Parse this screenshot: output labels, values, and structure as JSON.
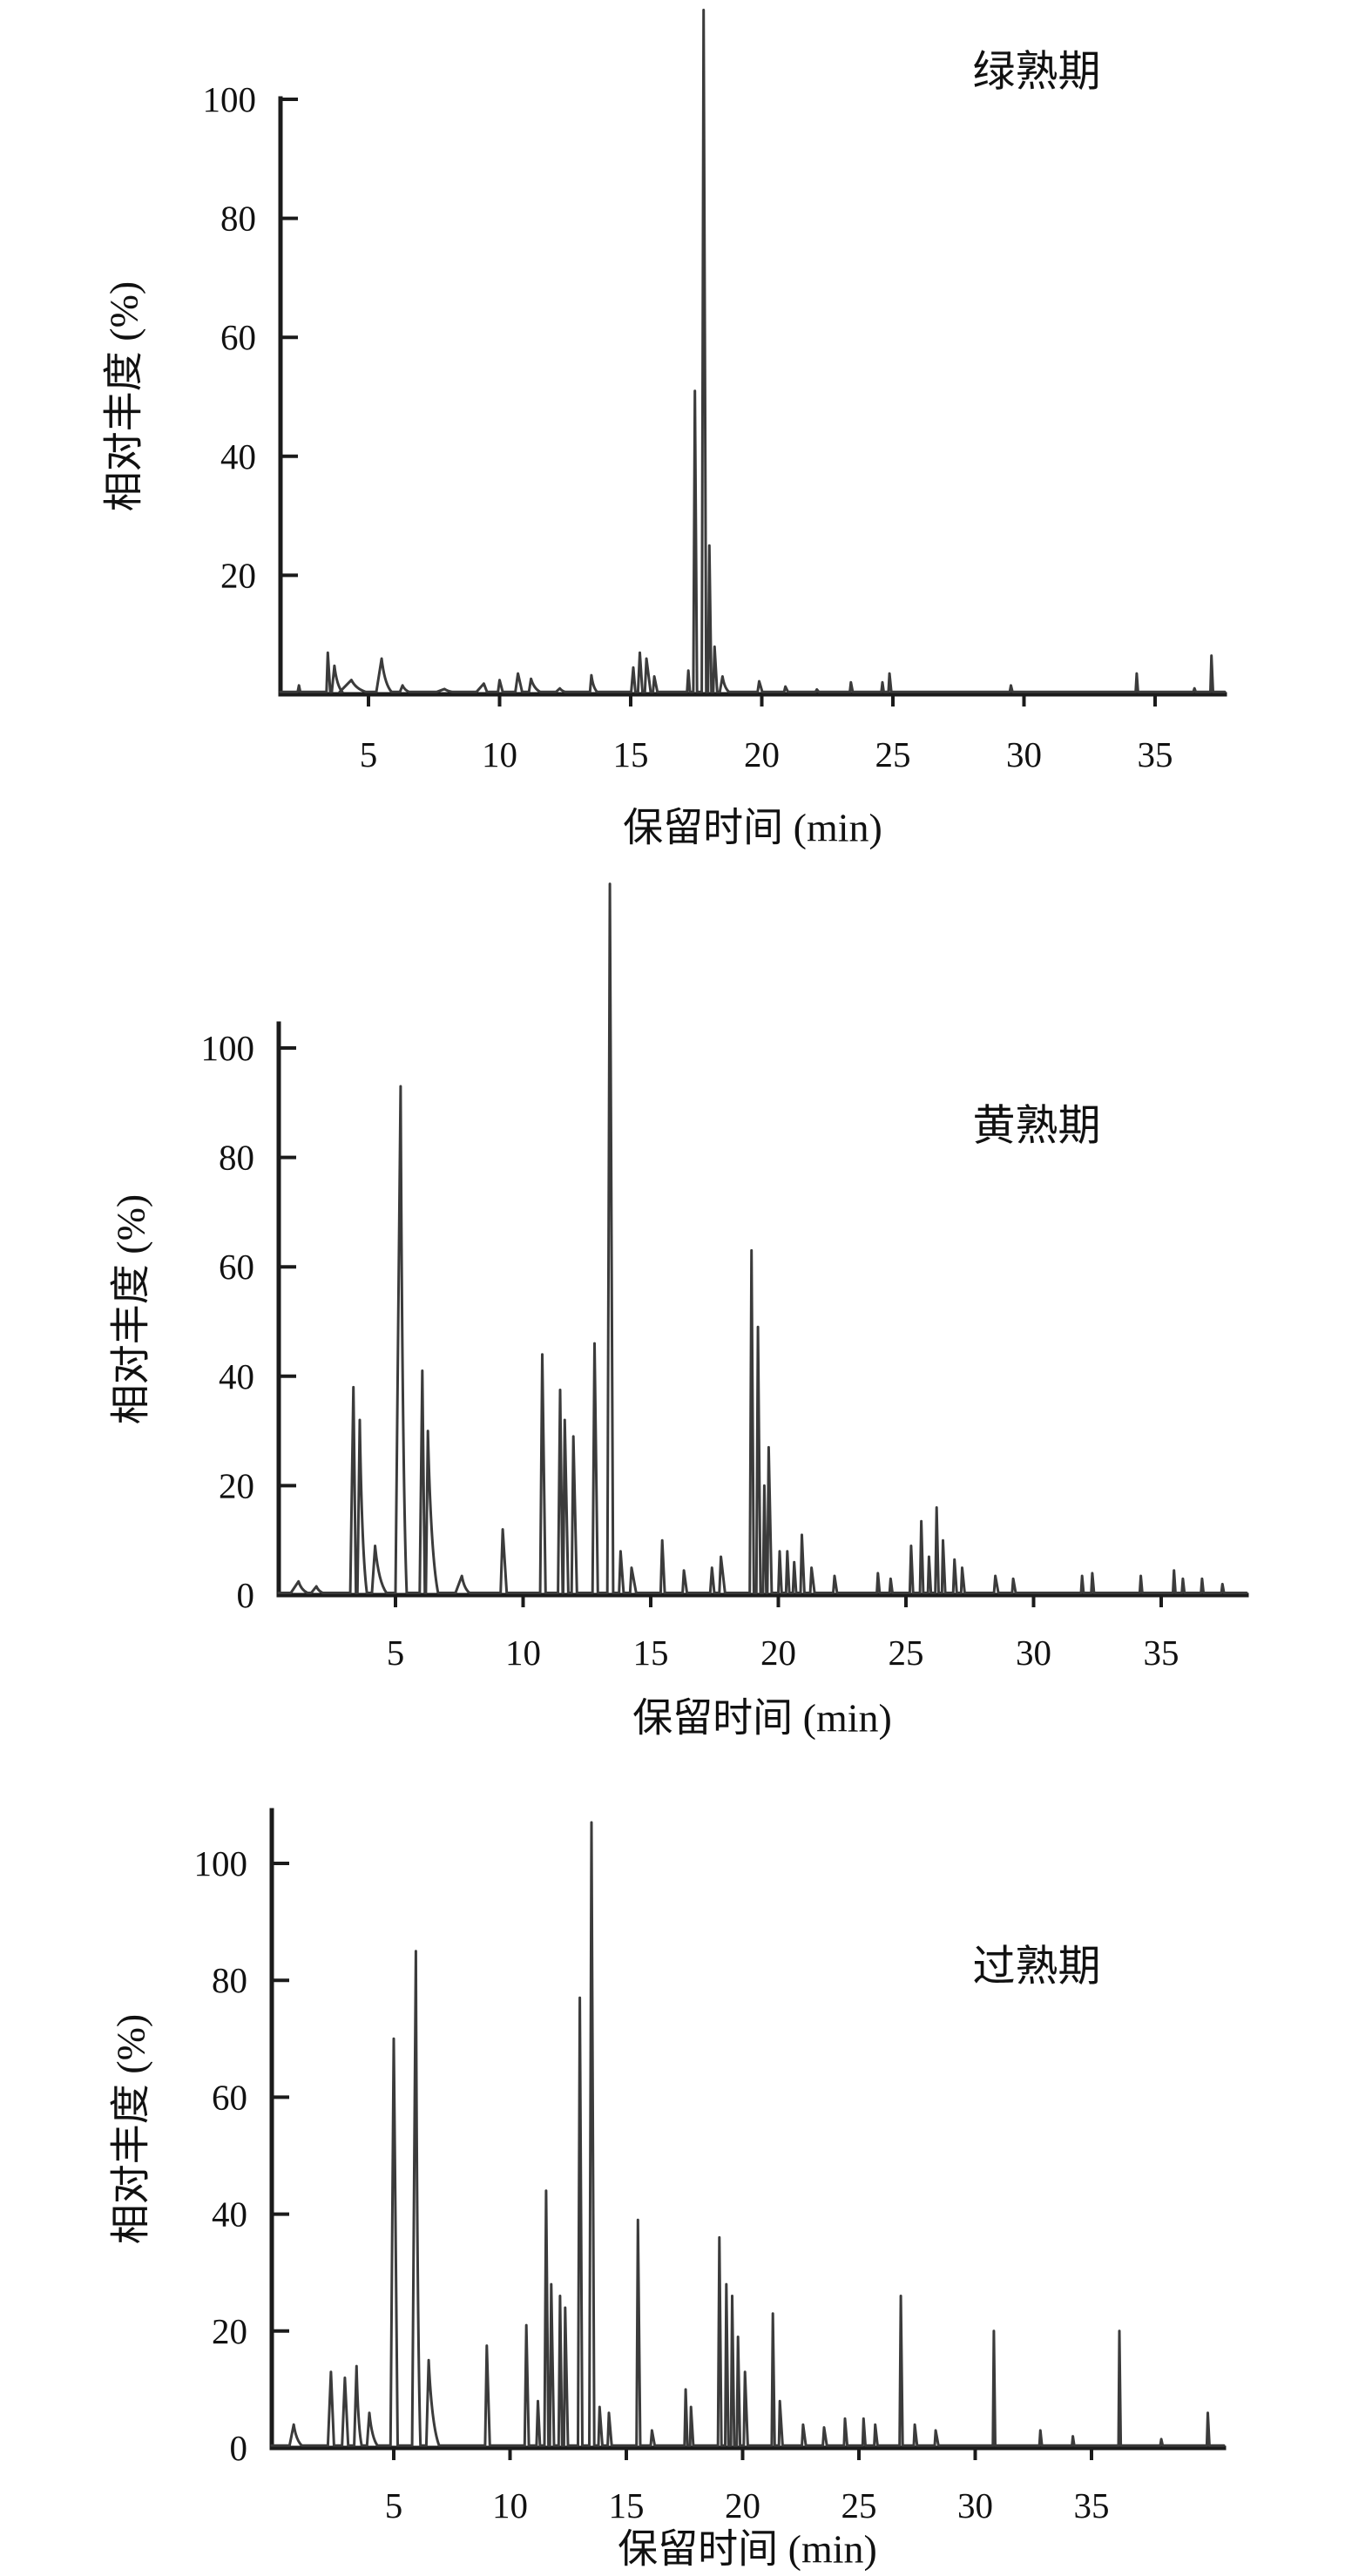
{
  "figure": {
    "background_color": "#ffffff",
    "trace_color": "#3b3b3b",
    "axis_color": "#1b1b1b",
    "text_color": "#111111"
  },
  "chart_data": {
    "type": "line",
    "subtype": "chromatogram",
    "xlabel": "保留时间 (min)",
    "ylabel": "相对丰度 (%)",
    "x_ticks": [
      5,
      10,
      15,
      20,
      25,
      30,
      35
    ],
    "grid": "off",
    "legend": "none",
    "panels": [
      {
        "title": "绿熟期",
        "y_ticks": [
          20,
          40,
          60,
          80,
          100
        ],
        "ylim": [
          0,
          115
        ],
        "xlim": [
          1.6,
          37.8
        ],
        "main_peak": {
          "time": 17.8,
          "height": 115
        },
        "peaks": [
          [
            2.35,
            1.5,
            0.05,
            0.05
          ],
          [
            3.45,
            7,
            0.05,
            0.09
          ],
          [
            3.7,
            4.8,
            0.1,
            0.3
          ],
          [
            4.35,
            2.4,
            0.45,
            0.55
          ],
          [
            5.5,
            6,
            0.2,
            0.38
          ],
          [
            6.3,
            1.5,
            0.1,
            0.25
          ],
          [
            7.9,
            0.9,
            0.3,
            0.3
          ],
          [
            9.4,
            1.8,
            0.28,
            0.12
          ],
          [
            10.0,
            2.4,
            0.06,
            0.12
          ],
          [
            10.7,
            3.5,
            0.1,
            0.16
          ],
          [
            11.2,
            2.6,
            0.08,
            0.35
          ],
          [
            12.3,
            1,
            0.15,
            0.2
          ],
          [
            13.5,
            3.2,
            0.05,
            0.22
          ],
          [
            15.1,
            4.5,
            0.08,
            0.08
          ],
          [
            15.35,
            7,
            0.07,
            0.1
          ],
          [
            15.6,
            6,
            0.06,
            0.16
          ],
          [
            15.9,
            3,
            0.05,
            0.12
          ],
          [
            17.2,
            4,
            0.05,
            0.06
          ],
          [
            17.45,
            51,
            0.06,
            0.08
          ],
          [
            17.78,
            115,
            0.07,
            0.1
          ],
          [
            18.0,
            25,
            0.05,
            0.08
          ],
          [
            18.2,
            8,
            0.05,
            0.1
          ],
          [
            18.5,
            3,
            0.1,
            0.25
          ],
          [
            19.9,
            2.2,
            0.06,
            0.12
          ],
          [
            20.9,
            1.3,
            0.05,
            0.1
          ],
          [
            22.1,
            0.8,
            0.05,
            0.08
          ],
          [
            23.4,
            2,
            0.04,
            0.07
          ],
          [
            24.6,
            2,
            0.04,
            0.05
          ],
          [
            24.87,
            3.5,
            0.04,
            0.07
          ],
          [
            29.5,
            1.5,
            0.04,
            0.06
          ],
          [
            34.3,
            3.5,
            0.04,
            0.05
          ],
          [
            36.5,
            1,
            0.04,
            0.05
          ],
          [
            37.15,
            6.5,
            0.04,
            0.06
          ]
        ]
      },
      {
        "title": "黄熟期",
        "y_ticks": [
          0,
          20,
          40,
          60,
          80,
          100
        ],
        "ylim": [
          0,
          130
        ],
        "xlim": [
          0.4,
          38.3
        ],
        "main_peak": {
          "time": 13.4,
          "height": 130
        },
        "peaks": [
          [
            1.2,
            2.5,
            0.3,
            0.35
          ],
          [
            1.9,
            1.6,
            0.2,
            0.25
          ],
          [
            3.35,
            38,
            0.12,
            0.1
          ],
          [
            3.6,
            32,
            0.09,
            0.28
          ],
          [
            4.2,
            9,
            0.12,
            0.45
          ],
          [
            5.2,
            93,
            0.2,
            0.24
          ],
          [
            6.05,
            41,
            0.1,
            0.1
          ],
          [
            6.27,
            30,
            0.08,
            0.4
          ],
          [
            7.6,
            3.5,
            0.25,
            0.3
          ],
          [
            9.2,
            12,
            0.08,
            0.16
          ],
          [
            10.75,
            44,
            0.08,
            0.13
          ],
          [
            11.45,
            37.5,
            0.08,
            0.1
          ],
          [
            11.63,
            32,
            0.06,
            0.14
          ],
          [
            11.97,
            29,
            0.07,
            0.14
          ],
          [
            12.8,
            46,
            0.08,
            0.13
          ],
          [
            13.4,
            130,
            0.1,
            0.13
          ],
          [
            13.82,
            8,
            0.06,
            0.12
          ],
          [
            14.25,
            5,
            0.06,
            0.18
          ],
          [
            15.45,
            10,
            0.06,
            0.1
          ],
          [
            16.3,
            4.5,
            0.05,
            0.12
          ],
          [
            17.4,
            5,
            0.07,
            0.09
          ],
          [
            17.75,
            7,
            0.06,
            0.16
          ],
          [
            18.95,
            63,
            0.07,
            0.09
          ],
          [
            19.2,
            49,
            0.06,
            0.1
          ],
          [
            19.45,
            20,
            0.05,
            0.08
          ],
          [
            19.62,
            27,
            0.05,
            0.12
          ],
          [
            20.05,
            8,
            0.05,
            0.08
          ],
          [
            20.35,
            8,
            0.05,
            0.08
          ],
          [
            20.62,
            6,
            0.05,
            0.08
          ],
          [
            20.92,
            11,
            0.05,
            0.1
          ],
          [
            21.3,
            5,
            0.05,
            0.12
          ],
          [
            22.2,
            3.5,
            0.05,
            0.1
          ],
          [
            23.9,
            4,
            0.04,
            0.07
          ],
          [
            24.4,
            3,
            0.04,
            0.07
          ],
          [
            25.2,
            9,
            0.05,
            0.08
          ],
          [
            25.6,
            13.5,
            0.05,
            0.08
          ],
          [
            25.9,
            7,
            0.04,
            0.08
          ],
          [
            26.2,
            16,
            0.05,
            0.08
          ],
          [
            26.45,
            10,
            0.04,
            0.09
          ],
          [
            26.9,
            6.5,
            0.05,
            0.09
          ],
          [
            27.2,
            5,
            0.04,
            0.1
          ],
          [
            28.5,
            3.5,
            0.05,
            0.12
          ],
          [
            29.2,
            3,
            0.04,
            0.1
          ],
          [
            31.9,
            3.5,
            0.04,
            0.06
          ],
          [
            32.3,
            4,
            0.04,
            0.07
          ],
          [
            34.2,
            3.5,
            0.04,
            0.06
          ],
          [
            35.5,
            4.5,
            0.04,
            0.06
          ],
          [
            35.85,
            3,
            0.04,
            0.06
          ],
          [
            36.6,
            3,
            0.04,
            0.06
          ],
          [
            37.4,
            2,
            0.04,
            0.06
          ]
        ]
      },
      {
        "title": "过熟期",
        "y_ticks": [
          0,
          20,
          40,
          60,
          80,
          100
        ],
        "ylim": [
          0,
          111
        ],
        "xlim": [
          -0.2,
          40.7
        ],
        "main_peak": {
          "time": 13.5,
          "height": 107
        },
        "peaks": [
          [
            0.7,
            4,
            0.18,
            0.35
          ],
          [
            2.3,
            13,
            0.13,
            0.13
          ],
          [
            2.9,
            12,
            0.12,
            0.14
          ],
          [
            3.4,
            14,
            0.1,
            0.22
          ],
          [
            3.95,
            6,
            0.1,
            0.35
          ],
          [
            5.0,
            70,
            0.14,
            0.17
          ],
          [
            5.95,
            85,
            0.16,
            0.2
          ],
          [
            6.5,
            15,
            0.1,
            0.45
          ],
          [
            9.0,
            17.5,
            0.07,
            0.13
          ],
          [
            10.7,
            21,
            0.07,
            0.11
          ],
          [
            11.2,
            8,
            0.06,
            0.09
          ],
          [
            11.55,
            44,
            0.07,
            0.1
          ],
          [
            11.77,
            28,
            0.06,
            0.12
          ],
          [
            12.15,
            26,
            0.06,
            0.09
          ],
          [
            12.37,
            24,
            0.05,
            0.12
          ],
          [
            13.0,
            77,
            0.08,
            0.11
          ],
          [
            13.5,
            107,
            0.09,
            0.12
          ],
          [
            13.85,
            7,
            0.05,
            0.12
          ],
          [
            14.25,
            6,
            0.05,
            0.12
          ],
          [
            15.5,
            39,
            0.06,
            0.1
          ],
          [
            16.1,
            3,
            0.05,
            0.12
          ],
          [
            17.55,
            10,
            0.05,
            0.08
          ],
          [
            17.78,
            7,
            0.04,
            0.1
          ],
          [
            19.0,
            36,
            0.06,
            0.09
          ],
          [
            19.3,
            28,
            0.05,
            0.09
          ],
          [
            19.55,
            26,
            0.05,
            0.09
          ],
          [
            19.8,
            19,
            0.05,
            0.09
          ],
          [
            20.1,
            13,
            0.05,
            0.12
          ],
          [
            21.3,
            23,
            0.05,
            0.08
          ],
          [
            21.6,
            8,
            0.04,
            0.12
          ],
          [
            22.6,
            4,
            0.05,
            0.12
          ],
          [
            23.5,
            3.5,
            0.05,
            0.12
          ],
          [
            24.4,
            5,
            0.04,
            0.1
          ],
          [
            25.2,
            5,
            0.04,
            0.08
          ],
          [
            25.7,
            4,
            0.04,
            0.1
          ],
          [
            26.8,
            26,
            0.05,
            0.08
          ],
          [
            27.4,
            4,
            0.04,
            0.1
          ],
          [
            28.3,
            3,
            0.04,
            0.12
          ],
          [
            30.8,
            20,
            0.04,
            0.06
          ],
          [
            32.8,
            3,
            0.04,
            0.07
          ],
          [
            34.2,
            2,
            0.04,
            0.06
          ],
          [
            36.2,
            20,
            0.04,
            0.06
          ],
          [
            38.0,
            1.5,
            0.04,
            0.06
          ],
          [
            40.0,
            6,
            0.04,
            0.07
          ]
        ]
      }
    ]
  }
}
